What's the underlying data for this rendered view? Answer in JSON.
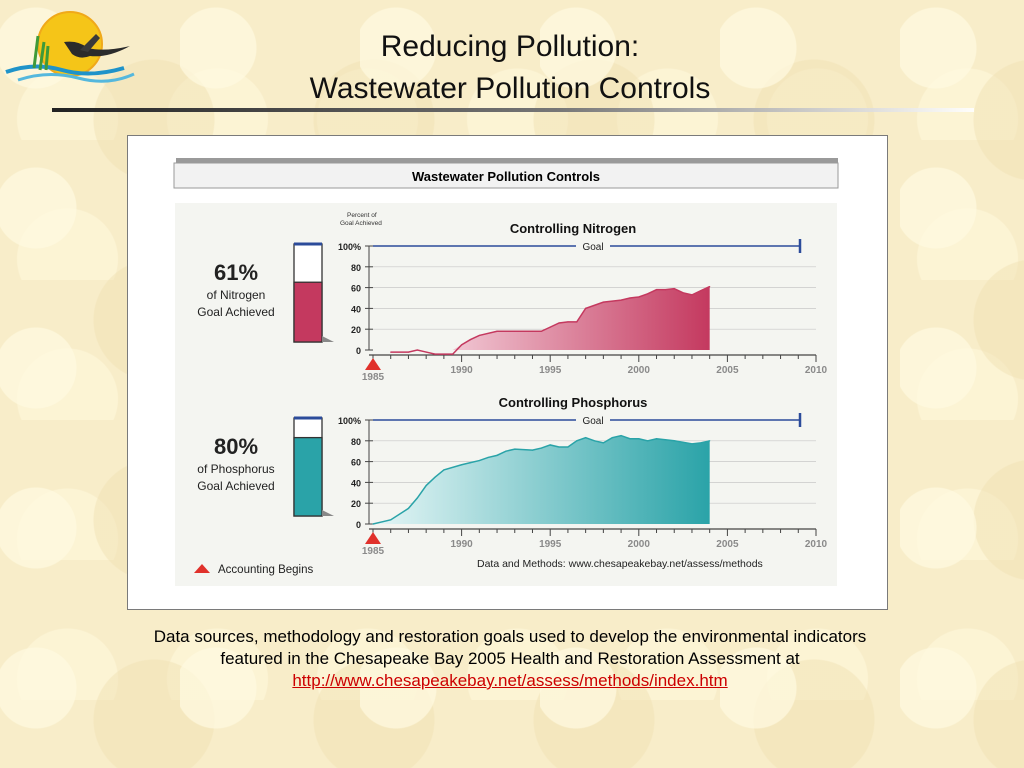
{
  "slide": {
    "title_line1": "Reducing Pollution:",
    "title_line2": "Wastewater Pollution Controls"
  },
  "figure": {
    "banner": "Wastewater Pollution Controls",
    "y_axis_caption_1": "Percent of",
    "y_axis_caption_2": "Goal Achieved",
    "goal_label": "Goal",
    "accounting_label": "Accounting Begins",
    "methods_note": "Data and Methods: www.chesapeakebay.net/assess/methods",
    "start_year_label": "1985"
  },
  "caption": {
    "line1": "Data sources, methodology and restoration goals used to develop the environmental indicators",
    "line2": "featured in the Chesapeake Bay 2005 Health and Restoration Assessment at",
    "link": "http://www.chesapeakebay.net/assess/methods/index.htm"
  },
  "colors": {
    "nitrogen": "#c4395f",
    "phosphorus": "#2aa3a8",
    "goal_line": "#2b4b9a",
    "marker": "#e0312b",
    "caption_link": "#cc0000"
  },
  "chart_data": [
    {
      "type": "area",
      "title": "Controlling Nitrogen",
      "summary_value": "61%",
      "summary_line1": "of Nitrogen",
      "summary_line2": "Goal Achieved",
      "summary_fraction": 0.61,
      "ylabel": "Percent of Goal Achieved",
      "ylim": [
        0,
        100
      ],
      "yticks": [
        "100%",
        "80",
        "60",
        "40",
        "20",
        "0"
      ],
      "xlim": [
        1985,
        2010
      ],
      "xticks": [
        "1990",
        "1995",
        "2000",
        "2005",
        "2010"
      ],
      "goal": 100,
      "x": [
        1986,
        1987,
        1987.5,
        1988,
        1988.5,
        1989,
        1989.5,
        1990,
        1990.5,
        1991,
        1992,
        1993,
        1994,
        1994.5,
        1995,
        1995.5,
        1996,
        1996.5,
        1997,
        1998,
        1998.5,
        1999,
        1999.5,
        2000,
        2000.5,
        2001,
        2001.5,
        2002,
        2002.5,
        2003,
        2003.5,
        2004
      ],
      "values": [
        -2,
        -2,
        0,
        -2,
        -4,
        -4,
        -4,
        5,
        10,
        14,
        18,
        18,
        18,
        18,
        22,
        26,
        27,
        27,
        40,
        46,
        47,
        48,
        50,
        51,
        54,
        58,
        58,
        59,
        55,
        53,
        57,
        61
      ]
    },
    {
      "type": "area",
      "title": "Controlling Phosphorus",
      "summary_value": "80%",
      "summary_line1": "of Phosphorus",
      "summary_line2": "Goal Achieved",
      "summary_fraction": 0.8,
      "ylabel": "Percent of Goal Achieved",
      "ylim": [
        0,
        100
      ],
      "yticks": [
        "100%",
        "80",
        "60",
        "40",
        "20",
        "0"
      ],
      "xlim": [
        1985,
        2010
      ],
      "xticks": [
        "1990",
        "1995",
        "2000",
        "2005",
        "2010"
      ],
      "goal": 100,
      "x": [
        1985,
        1986,
        1987,
        1987.5,
        1988,
        1988.5,
        1989,
        1990,
        1990.5,
        1991,
        1991.5,
        1992,
        1992.5,
        1993,
        1994,
        1994.5,
        1995,
        1995.5,
        1996,
        1996.5,
        1997,
        1997.5,
        1998,
        1998.5,
        1999,
        1999.5,
        2000,
        2000.5,
        2001,
        2001.5,
        2002,
        2003,
        2003.5,
        2004
      ],
      "values": [
        0,
        4,
        15,
        25,
        37,
        45,
        52,
        57,
        59,
        61,
        64,
        66,
        70,
        72,
        71,
        73,
        76,
        74,
        74,
        80,
        83,
        80,
        78,
        83,
        85,
        82,
        82,
        80,
        82,
        81,
        80,
        77,
        78,
        80
      ]
    }
  ]
}
